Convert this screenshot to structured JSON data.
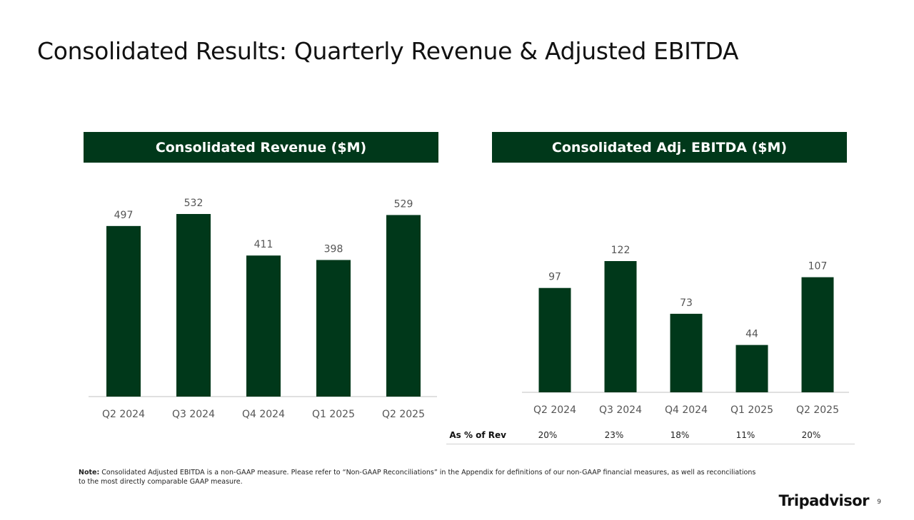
{
  "slide": {
    "title": "Consolidated Results: Quarterly Revenue & Adjusted EBITDA",
    "note_label": "Note:",
    "note_text": "Consolidated Adjusted EBITDA is a non-GAAP measure.  Please refer to “Non-GAAP Reconciliations” in the Appendix for definitions of our non-GAAP financial measures, as well as reconciliations to the most directly comparable GAAP measure.",
    "logo": "Tripadvisor",
    "page_number": "9"
  },
  "colors": {
    "bar": "#00381a",
    "header_bg": "#00381a",
    "header_text": "#ffffff"
  },
  "chart_data": [
    {
      "type": "bar",
      "title": "Consolidated Revenue ($M)",
      "categories": [
        "Q2 2024",
        "Q3 2024",
        "Q4 2024",
        "Q1 2025",
        "Q2 2025"
      ],
      "values": [
        497,
        532,
        411,
        398,
        529
      ],
      "xlabel": "",
      "ylabel": "",
      "ylim": [
        0,
        532
      ],
      "grid": false
    },
    {
      "type": "bar",
      "title": "Consolidated Adj. EBITDA ($M)",
      "categories": [
        "Q2 2024",
        "Q3 2024",
        "Q4 2024",
        "Q1 2025",
        "Q2 2025"
      ],
      "values": [
        97,
        122,
        73,
        44,
        107
      ],
      "xlabel": "",
      "ylabel": "",
      "ylim": [
        0,
        122
      ],
      "grid": false,
      "pct_of_rev_label": "As % of Rev",
      "pct_of_rev": [
        "20%",
        "23%",
        "18%",
        "11%",
        "20%"
      ]
    }
  ]
}
